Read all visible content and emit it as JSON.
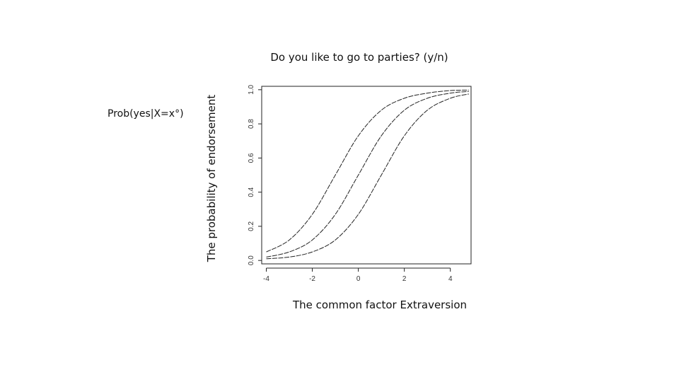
{
  "slide": {
    "title": "Do you like to go to parties? (y/n)",
    "prob_label": "Prob(yes|X=x°)"
  },
  "chart_data": {
    "type": "line",
    "title": "",
    "xlabel": "The common factor Extraversion",
    "ylabel": "The probability of endorsement",
    "xlim": [
      -4.2,
      4.9
    ],
    "ylim": [
      -0.02,
      1.02
    ],
    "x_ticks": [
      -4,
      -2,
      0,
      2,
      4
    ],
    "y_ticks": [
      0.0,
      0.2,
      0.4,
      0.6,
      0.8,
      1.0
    ],
    "grid": false,
    "series": [
      {
        "x": [
          -4,
          -3,
          -2,
          -1,
          0,
          1,
          2,
          3,
          4,
          4.8
        ],
        "values": [
          0.05,
          0.12,
          0.27,
          0.5,
          0.73,
          0.88,
          0.95,
          0.98,
          0.995,
          0.998
        ]
      },
      {
        "x": [
          -4,
          -3,
          -2,
          -1,
          0,
          1,
          2,
          3,
          4,
          4.8
        ],
        "values": [
          0.02,
          0.05,
          0.12,
          0.27,
          0.5,
          0.73,
          0.88,
          0.95,
          0.98,
          0.99
        ]
      },
      {
        "x": [
          -4,
          -3,
          -2,
          -1,
          0,
          1,
          2,
          3,
          4,
          4.8
        ],
        "values": [
          0.01,
          0.02,
          0.05,
          0.12,
          0.27,
          0.5,
          0.73,
          0.88,
          0.95,
          0.975
        ]
      }
    ]
  }
}
